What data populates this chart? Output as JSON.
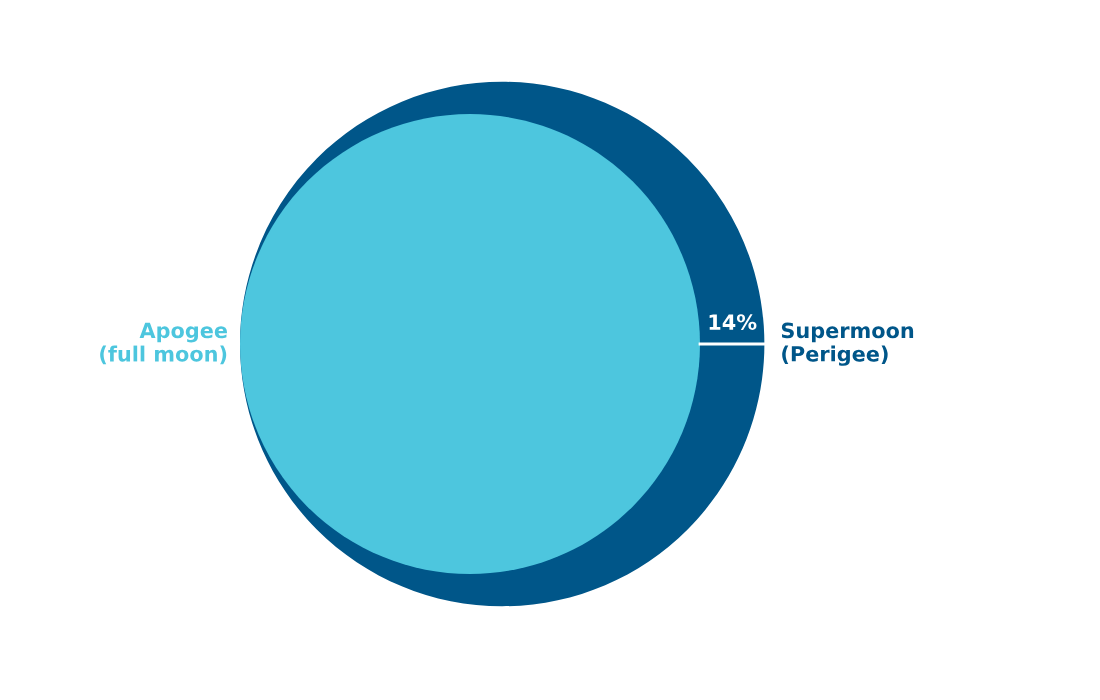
{
  "chart_data": {
    "type": "other",
    "categories": [
      "Apogee\n(full moon)",
      "Supermoon\n(Perigee)"
    ],
    "values": [
      null,
      14
    ],
    "value_labels": [
      null,
      "14%"
    ],
    "colors": [
      "#4dc6de",
      "#005689"
    ]
  }
}
